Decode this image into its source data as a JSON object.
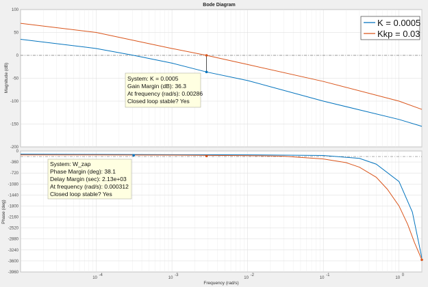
{
  "title": "Bode Diagram",
  "colors": {
    "series1": "#0072bd",
    "series2": "#d95319",
    "panel_bg": "#ffffff",
    "figure_bg": "#f0f0f0",
    "datatip_bg": "#ffffe1"
  },
  "chart_data": [
    {
      "type": "line",
      "panel": "magnitude",
      "title": "Bode Diagram",
      "xlabel": "Frequency  (rad/s)",
      "ylabel": "Magnitude (dB)",
      "xscale": "log",
      "xlim": [
        1e-05,
        2
      ],
      "ylim": [
        -200,
        100
      ],
      "yticks": [
        "100",
        "50",
        "0",
        "-50",
        "-100",
        "-150",
        "-200"
      ],
      "ytick_values": [
        100,
        50,
        0,
        -50,
        -100,
        -150,
        -200
      ],
      "grid": true,
      "legend": {
        "placement": "top-right",
        "entries": [
          "K = 0.0005",
          "Kkp = 0.03"
        ]
      },
      "reference_line": 0,
      "series": [
        {
          "name": "K = 0.0005",
          "color": "#0072bd",
          "x": [
            1e-05,
            0.0001,
            0.000312,
            0.001,
            0.00286,
            0.01,
            0.1,
            1,
            2
          ],
          "y": [
            35,
            15,
            0,
            -17,
            -36.3,
            -55,
            -100,
            -140,
            -155
          ]
        },
        {
          "name": "Kkp = 0.03",
          "color": "#d95319",
          "x": [
            1e-05,
            0.0001,
            0.001,
            0.00286,
            0.01,
            0.1,
            1,
            2
          ],
          "y": [
            70,
            50,
            15,
            0,
            -20,
            -57,
            -100,
            -118
          ]
        }
      ],
      "markers": [
        {
          "x": 0.00286,
          "y": 0,
          "color": "#d95319"
        },
        {
          "x": 0.00286,
          "y": -36.3,
          "color": "#0072bd"
        }
      ],
      "annotation": {
        "lines": [
          "System: K = 0.0005",
          "Gain Margin (dB): 36.3",
          "At frequency (rad/s): 0.00286",
          "Closed loop stable? Yes"
        ]
      }
    },
    {
      "type": "line",
      "panel": "phase",
      "xlabel": "Frequency  (rad/s)",
      "ylabel": "Phase (deg)",
      "xscale": "log",
      "xlim": [
        1e-05,
        2
      ],
      "ylim": [
        -3960,
        0
      ],
      "yticks": [
        "0",
        "-360",
        "-720",
        "-1080",
        "-1440",
        "-1800",
        "-2160",
        "-2520",
        "-2880",
        "-3240",
        "-3600",
        "-3960"
      ],
      "ytick_values": [
        0,
        -360,
        -720,
        -1080,
        -1440,
        -1800,
        -2160,
        -2520,
        -2880,
        -3240,
        -3600,
        -3960
      ],
      "xticks": [
        "10",
        "10",
        "10",
        "10",
        "10"
      ],
      "xtick_exponents": [
        "-4",
        "-3",
        "-2",
        "-1",
        "0"
      ],
      "xtick_values": [
        0.0001,
        0.001,
        0.01,
        0.1,
        1
      ],
      "grid": true,
      "reference_line": -180,
      "series": [
        {
          "name": "K = 0.0005",
          "color": "#0072bd",
          "x": [
            1e-05,
            0.0001,
            0.001,
            0.01,
            0.1,
            0.3,
            0.5,
            1,
            1.5,
            2
          ],
          "y": [
            -100,
            -110,
            -120,
            -125,
            -145,
            -240,
            -430,
            -1000,
            -2000,
            -3500
          ]
        },
        {
          "name": "Kkp = 0.03",
          "color": "#d95319",
          "x": [
            1e-05,
            0.0001,
            0.001,
            0.01,
            0.03,
            0.1,
            0.2,
            0.3,
            0.5,
            0.7,
            1,
            1.3,
            1.6,
            2
          ],
          "y": [
            -130,
            -130,
            -135,
            -150,
            -170,
            -260,
            -380,
            -530,
            -860,
            -1250,
            -1800,
            -2400,
            -3000,
            -3560
          ]
        }
      ],
      "markers": [
        {
          "x": 0.000312,
          "y": -141.9,
          "color": "#0072bd"
        },
        {
          "x": 0.00286,
          "y": -165,
          "color": "#d95319"
        },
        {
          "x": 2,
          "y": -3560,
          "color": "#d95319"
        }
      ],
      "annotation": {
        "lines": [
          "System: W_zap",
          "Phase Margin (deg): 38.1",
          "Delay Margin (sec): 2.13e+03",
          "At frequency (rad/s): 0.000312",
          "Closed loop stable? Yes"
        ]
      }
    }
  ]
}
